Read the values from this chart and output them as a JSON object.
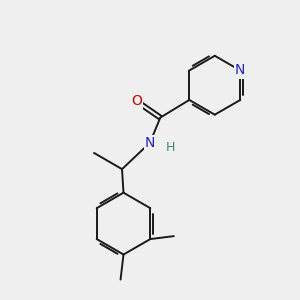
{
  "background_color": "#efefef",
  "bond_color": "#1a1a1a",
  "bond_width": 1.4,
  "atom_colors": {
    "O": "#cc0000",
    "N_amide": "#2222cc",
    "N_pyridine": "#2222cc",
    "H": "#4d8080",
    "C": "#1a1a1a"
  },
  "font_size_N": 10,
  "font_size_H": 9
}
